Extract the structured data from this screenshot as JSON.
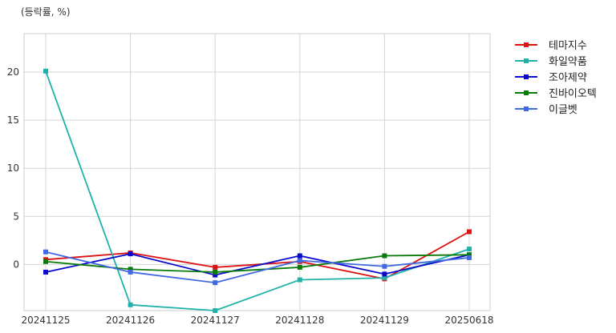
{
  "chart_data": {
    "type": "line",
    "unit_label": "(등락률, %)",
    "x": [
      "20241125",
      "20241126",
      "20241127",
      "20241128",
      "20241129",
      "20250618"
    ],
    "yticks": [
      0,
      5,
      10,
      15,
      20
    ],
    "ylim": [
      -4.8,
      24.0
    ],
    "grid": true,
    "legend_position": "outside-top-right",
    "series": [
      {
        "name": "테마지수",
        "color": "#dd1111",
        "values": [
          0.5,
          1.2,
          -0.3,
          0.3,
          -1.5,
          3.4
        ]
      },
      {
        "name": "화일약품",
        "color": "#20b2aa",
        "values": [
          20.1,
          -4.2,
          -4.8,
          -1.6,
          -1.4,
          1.6
        ]
      },
      {
        "name": "조아제약",
        "color": "#0a0acd",
        "values": [
          -0.8,
          1.1,
          -1.1,
          0.9,
          -1.0,
          1.0
        ]
      },
      {
        "name": "진바이오텍",
        "color": "#0a7a0a",
        "values": [
          0.3,
          -0.5,
          -0.8,
          -0.3,
          0.9,
          1.0
        ]
      },
      {
        "name": "이글벳",
        "color": "#4169e1",
        "values": [
          1.3,
          -0.8,
          -1.9,
          0.4,
          -0.2,
          0.7
        ]
      }
    ]
  }
}
